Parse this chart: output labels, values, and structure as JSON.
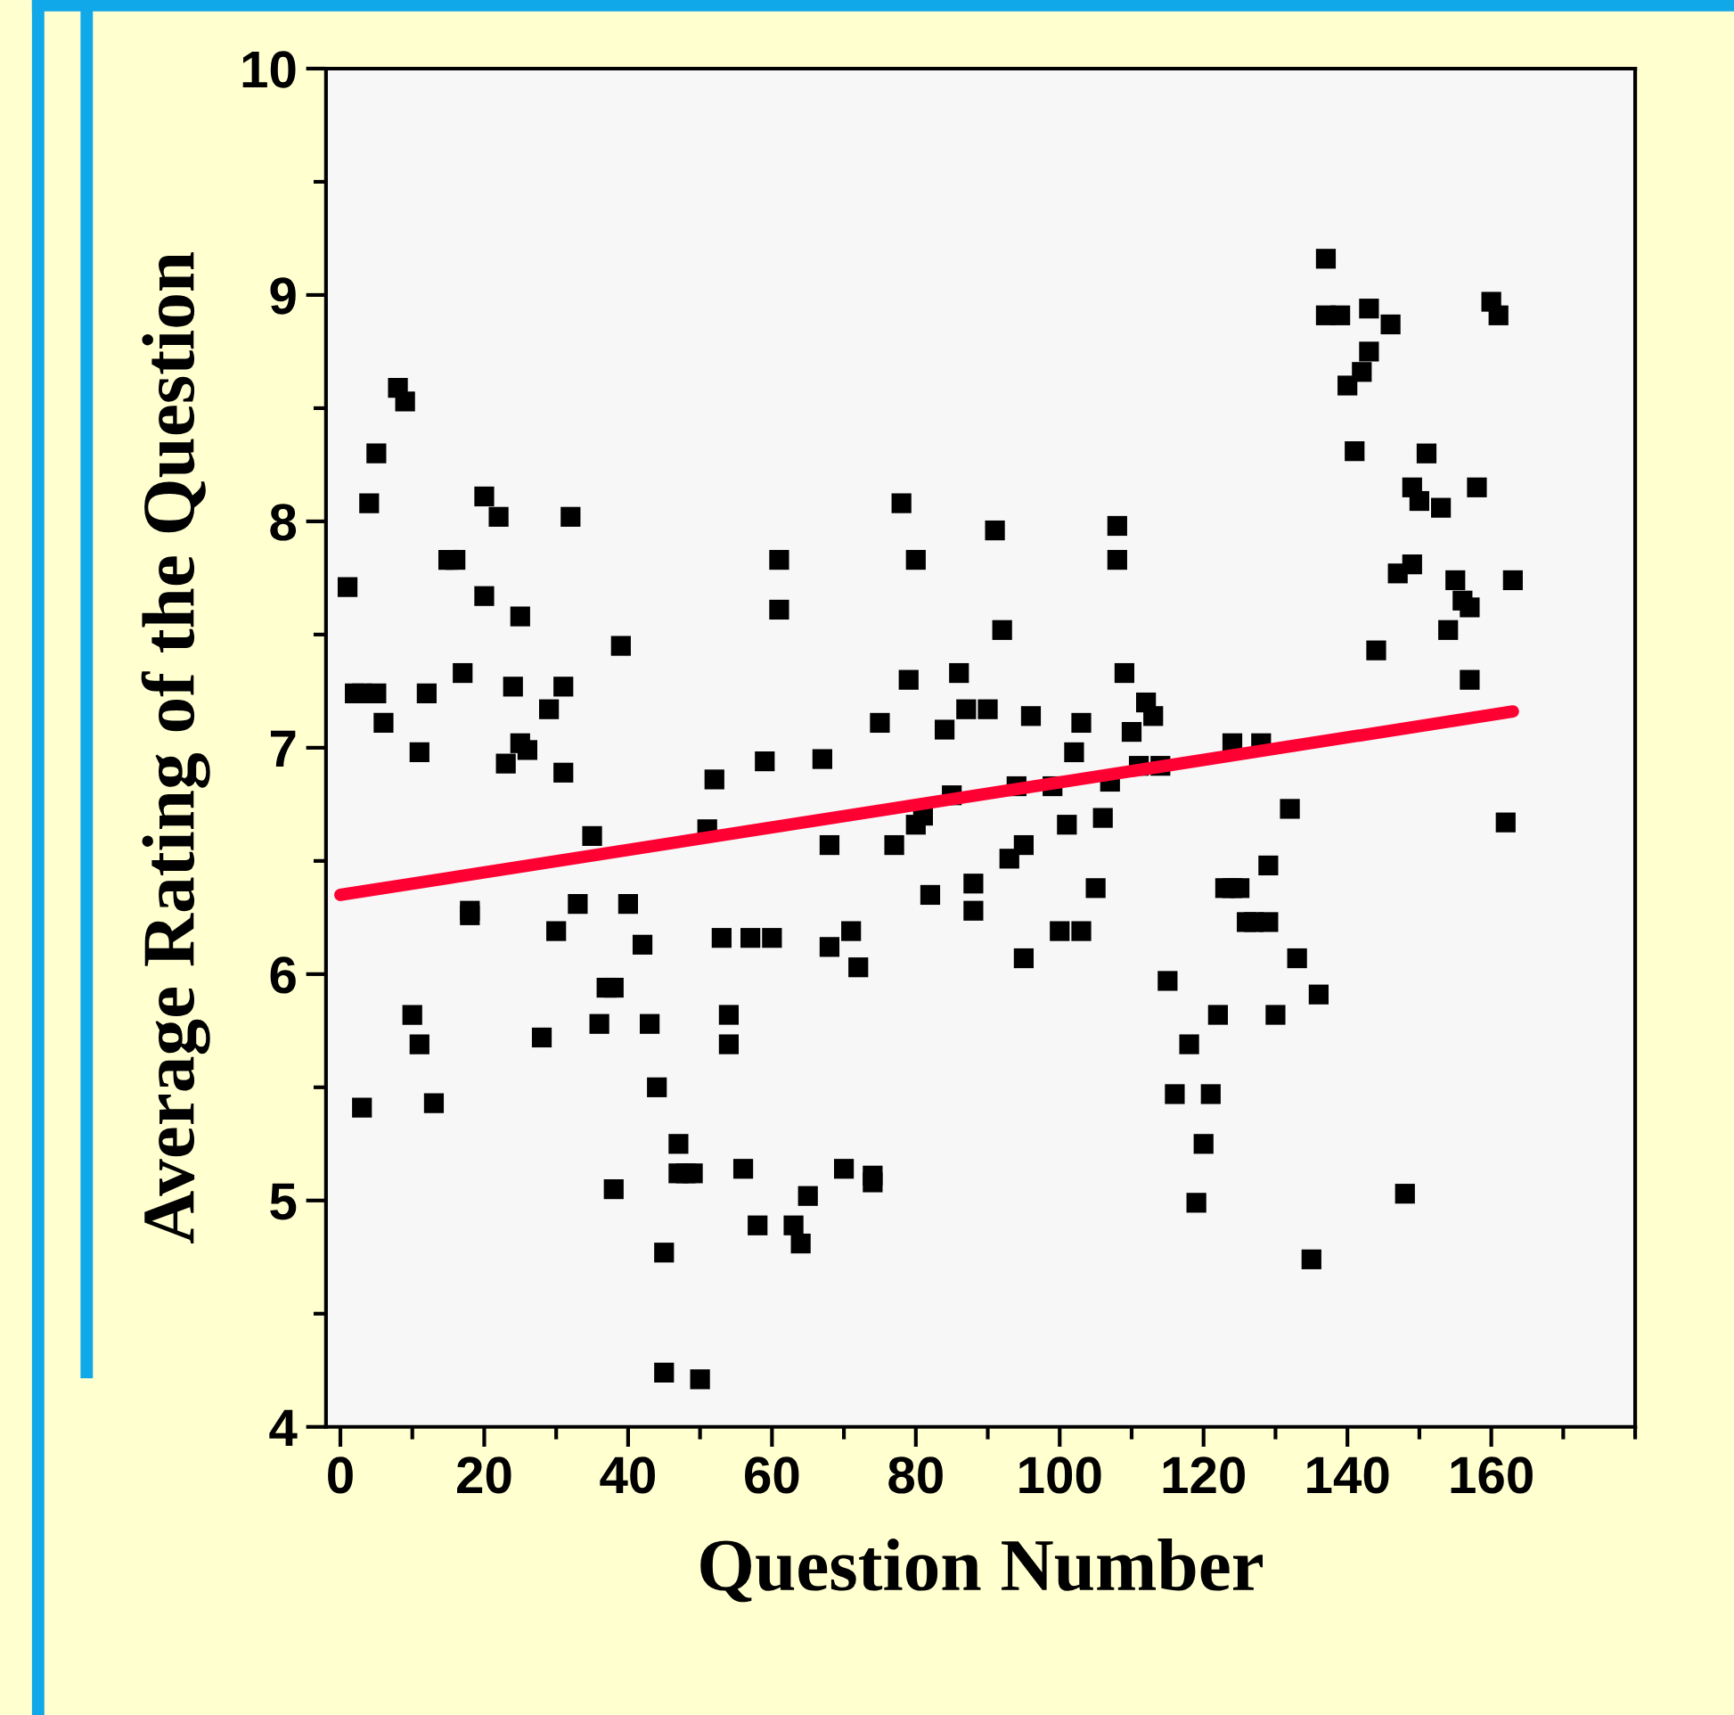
{
  "chart_data": {
    "type": "scatter",
    "xlabel": "Question Number",
    "ylabel": "Average Rating of the Question",
    "xlim": [
      -2,
      180
    ],
    "ylim": [
      4,
      10
    ],
    "xticks": [
      0,
      20,
      40,
      60,
      80,
      100,
      120,
      140,
      160
    ],
    "yticks": [
      4,
      5,
      6,
      7,
      8,
      9,
      10
    ],
    "grid": false,
    "series": [
      {
        "marker": "square",
        "color": "#000000",
        "x": [
          1,
          2,
          3,
          5,
          3,
          4,
          5,
          6,
          8,
          9,
          10,
          11,
          11,
          12,
          13,
          15,
          16,
          17,
          18,
          18,
          20,
          20,
          22,
          23,
          24,
          25,
          25,
          26,
          28,
          29,
          30,
          31,
          31,
          32,
          33,
          35,
          36,
          37,
          38,
          38,
          39,
          40,
          42,
          43,
          44,
          45,
          45,
          47,
          47,
          48,
          49,
          50,
          51,
          52,
          53,
          54,
          54,
          56,
          57,
          58,
          59,
          60,
          61,
          61,
          63,
          64,
          65,
          67,
          68,
          68,
          70,
          71,
          72,
          74,
          74,
          75,
          77,
          78,
          79,
          80,
          80,
          81,
          82,
          84,
          85,
          86,
          87,
          88,
          88,
          90,
          91,
          92,
          93,
          94,
          95,
          95,
          96,
          99,
          100,
          101,
          102,
          103,
          103,
          105,
          106,
          107,
          108,
          108,
          109,
          110,
          111,
          112,
          113,
          114,
          115,
          116,
          118,
          119,
          120,
          121,
          122,
          123,
          124,
          124,
          125,
          126,
          127,
          128,
          129,
          129,
          130,
          132,
          133,
          135,
          136,
          137,
          137,
          139,
          140,
          141,
          142,
          143,
          143,
          144,
          146,
          147,
          148,
          149,
          149,
          150,
          151,
          153,
          154,
          155,
          156,
          157,
          157,
          158,
          160,
          161,
          162,
          163
        ],
        "values": [
          7.71,
          7.24,
          7.24,
          7.24,
          5.41,
          8.08,
          8.3,
          7.11,
          8.59,
          8.53,
          5.82,
          5.69,
          6.98,
          7.24,
          5.43,
          7.83,
          7.83,
          7.33,
          6.26,
          6.28,
          8.11,
          7.67,
          8.02,
          6.93,
          7.27,
          7.02,
          7.58,
          6.99,
          5.72,
          7.17,
          6.19,
          7.27,
          6.89,
          8.02,
          6.31,
          6.61,
          5.78,
          5.94,
          5.94,
          5.05,
          7.45,
          6.31,
          6.13,
          5.78,
          5.5,
          4.77,
          4.24,
          5.12,
          5.25,
          5.12,
          5.12,
          4.21,
          6.64,
          6.86,
          6.16,
          5.69,
          5.82,
          5.14,
          6.16,
          4.89,
          6.94,
          6.16,
          7.83,
          7.61,
          4.89,
          4.81,
          5.02,
          6.95,
          6.12,
          6.57,
          5.14,
          6.19,
          6.03,
          5.11,
          5.08,
          7.11,
          6.57,
          8.08,
          7.3,
          7.83,
          6.66,
          6.7,
          6.35,
          7.08,
          6.79,
          7.33,
          7.17,
          6.4,
          6.28,
          7.17,
          7.96,
          7.52,
          6.51,
          6.83,
          6.57,
          6.07,
          7.14,
          6.83,
          6.19,
          6.66,
          6.98,
          6.19,
          7.11,
          6.38,
          6.69,
          6.85,
          7.83,
          7.98,
          7.33,
          7.07,
          6.92,
          7.2,
          7.14,
          6.92,
          5.97,
          5.47,
          5.69,
          4.99,
          5.25,
          5.47,
          5.82,
          6.38,
          7.02,
          6.38,
          6.38,
          6.23,
          6.23,
          7.02,
          6.23,
          6.48,
          5.82,
          6.73,
          6.07,
          4.74,
          5.91,
          8.91,
          9.16,
          8.91,
          8.6,
          8.31,
          8.66,
          8.94,
          8.75,
          7.43,
          8.87,
          7.77,
          5.03,
          8.15,
          7.81,
          8.09,
          8.3,
          8.06,
          7.52,
          7.74,
          7.65,
          7.3,
          7.62,
          8.15,
          8.97,
          8.91,
          6.67,
          7.74
        ]
      },
      {
        "type": "line",
        "color": "#ff0033",
        "x": [
          0,
          163
        ],
        "values": [
          6.35,
          7.16
        ],
        "line_style": "solid",
        "marker": "none"
      }
    ]
  }
}
